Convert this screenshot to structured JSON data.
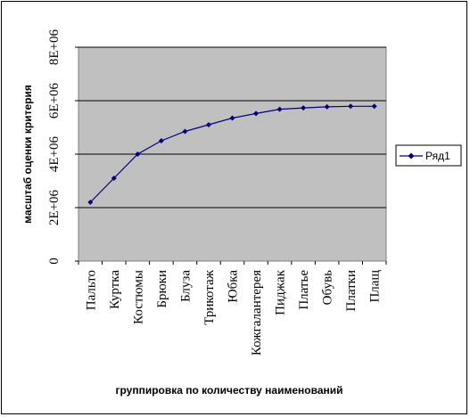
{
  "chart_data": {
    "type": "line",
    "title": "",
    "xlabel": "группировка по количеству наименований",
    "ylabel": "масштаб оценки критерия",
    "categories": [
      "Пальто",
      "Куртка",
      "Костюмы",
      "Брюки",
      "Блуза",
      "Трикотаж",
      "Юбка",
      "Кожгалантерея",
      "Пиджак",
      "Платье",
      "Обувь",
      "Платки",
      "Плащ"
    ],
    "series": [
      {
        "name": "Ряд1",
        "color": "#00007f",
        "marker": "diamond",
        "values": [
          2200000,
          3100000,
          4000000,
          4500000,
          4850000,
          5100000,
          5350000,
          5520000,
          5680000,
          5730000,
          5770000,
          5790000,
          5790000
        ]
      }
    ],
    "yticks": [
      {
        "value": 0,
        "label": "0"
      },
      {
        "value": 2000000,
        "label": "2E+06"
      },
      {
        "value": 4000000,
        "label": "4E+06"
      },
      {
        "value": 6000000,
        "label": "6E+06"
      },
      {
        "value": 8000000,
        "label": "8E+06"
      }
    ],
    "ylim": [
      0,
      8000000
    ],
    "grid": true,
    "legend_position": "right",
    "plot_background": "#c0c0c0"
  }
}
